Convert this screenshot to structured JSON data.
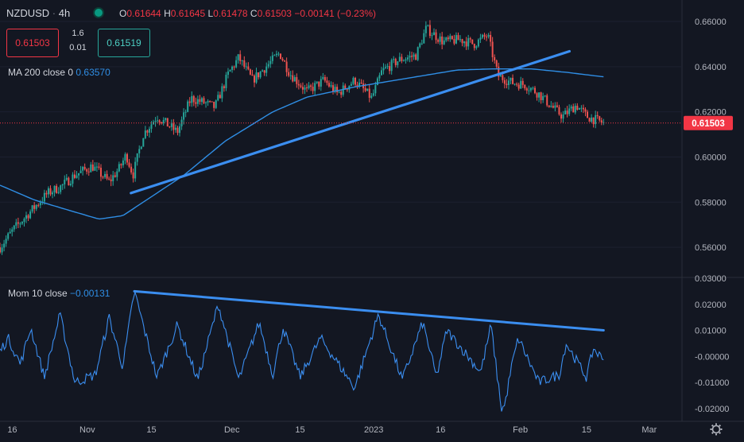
{
  "header": {
    "symbol": "NZDUSD",
    "interval": "4h",
    "open_label": "O",
    "open": "0.61644",
    "high_label": "H",
    "high": "0.61645",
    "low_label": "L",
    "low": "0.61478",
    "close_label": "C",
    "close": "0.61503",
    "change": "−0.00141 (−0.23%)"
  },
  "quote": {
    "bid": "0.61503",
    "ask": "0.61519",
    "spread_top": "1.6",
    "spread_bottom": "0.01"
  },
  "ma_legend": {
    "label": "MA 200 close 0",
    "value": "0.63570"
  },
  "mom_legend": {
    "label": "Mom 10 close",
    "value": "−0.00131"
  },
  "last_price_label": "0.61503",
  "colors": {
    "background": "#131722",
    "up": "#26a69a",
    "down": "#ef5350",
    "ma": "#2f8ee5",
    "trendline": "#3b8ef0",
    "momentum": "#3b8ef0",
    "price_tag": "#f23645"
  },
  "icons": {
    "settings": "gear-icon"
  },
  "chart_data": [
    {
      "type": "candlestick",
      "pane": "price",
      "x_tick_labels": [
        "16",
        "Nov",
        "15",
        "Dec",
        "15",
        "2023",
        "16",
        "Feb",
        "15",
        "Mar"
      ],
      "y_tick_labels": [
        "0.66000",
        "0.64000",
        "0.62000",
        "0.60000",
        "0.58000",
        "0.56000"
      ],
      "ylim": [
        0.547,
        0.666
      ],
      "last_price": 0.61503,
      "price_anchors": [
        [
          0,
          0.56
        ],
        [
          0.02,
          0.568
        ],
        [
          0.045,
          0.576
        ],
        [
          0.07,
          0.584
        ],
        [
          0.09,
          0.587
        ],
        [
          0.11,
          0.592
        ],
        [
          0.135,
          0.596
        ],
        [
          0.16,
          0.589
        ],
        [
          0.175,
          0.595
        ],
        [
          0.185,
          0.601
        ],
        [
          0.195,
          0.592
        ],
        [
          0.21,
          0.61
        ],
        [
          0.23,
          0.618
        ],
        [
          0.26,
          0.611
        ],
        [
          0.28,
          0.626
        ],
        [
          0.3,
          0.624
        ],
        [
          0.315,
          0.622
        ],
        [
          0.335,
          0.637
        ],
        [
          0.35,
          0.644
        ],
        [
          0.37,
          0.634
        ],
        [
          0.39,
          0.64
        ],
        [
          0.41,
          0.646
        ],
        [
          0.425,
          0.637
        ],
        [
          0.45,
          0.629
        ],
        [
          0.475,
          0.634
        ],
        [
          0.495,
          0.628
        ],
        [
          0.52,
          0.634
        ],
        [
          0.545,
          0.626
        ],
        [
          0.56,
          0.638
        ],
        [
          0.585,
          0.643
        ],
        [
          0.61,
          0.645
        ],
        [
          0.625,
          0.657
        ],
        [
          0.65,
          0.651
        ],
        [
          0.675,
          0.652
        ],
        [
          0.695,
          0.65
        ],
        [
          0.715,
          0.654
        ],
        [
          0.73,
          0.636
        ],
        [
          0.75,
          0.633
        ],
        [
          0.77,
          0.632
        ],
        [
          0.79,
          0.628
        ],
        [
          0.81,
          0.622
        ],
        [
          0.825,
          0.618
        ],
        [
          0.845,
          0.623
        ],
        [
          0.86,
          0.618
        ],
        [
          0.885,
          0.615
        ]
      ],
      "ma200_anchors": [
        [
          0,
          0.5875
        ],
        [
          0.05,
          0.581
        ],
        [
          0.1,
          0.5765
        ],
        [
          0.145,
          0.5725
        ],
        [
          0.18,
          0.574
        ],
        [
          0.215,
          0.581
        ],
        [
          0.27,
          0.592
        ],
        [
          0.33,
          0.607
        ],
        [
          0.4,
          0.62
        ],
        [
          0.45,
          0.6265
        ],
        [
          0.52,
          0.631
        ],
        [
          0.6,
          0.635
        ],
        [
          0.67,
          0.6385
        ],
        [
          0.72,
          0.639
        ],
        [
          0.78,
          0.639
        ],
        [
          0.83,
          0.6375
        ],
        [
          0.885,
          0.6355
        ]
      ],
      "trendline": {
        "start": [
          0.192,
          0.584
        ],
        "end": [
          0.835,
          0.6468
        ]
      }
    },
    {
      "type": "line",
      "pane": "momentum",
      "series": [
        {
          "name": "Mom 10 close"
        }
      ],
      "y_tick_labels": [
        "0.03000",
        "0.02000",
        "0.01000",
        "-0.00000",
        "-0.01000",
        "-0.02000"
      ],
      "ylim": [
        -0.024,
        0.03
      ],
      "last_value": -0.00131,
      "peaks": [
        [
          0.012,
          0.007
        ],
        [
          0.045,
          0.011
        ],
        [
          0.088,
          0.016
        ],
        [
          0.16,
          0.015
        ],
        [
          0.197,
          0.025
        ],
        [
          0.26,
          0.012
        ],
        [
          0.32,
          0.02
        ],
        [
          0.38,
          0.013
        ],
        [
          0.415,
          0.011
        ],
        [
          0.47,
          0.007
        ],
        [
          0.555,
          0.016
        ],
        [
          0.62,
          0.013
        ],
        [
          0.655,
          0.01
        ],
        [
          0.72,
          0.012
        ],
        [
          0.75,
          -0.004
        ],
        [
          0.76,
          0.007
        ],
        [
          0.83,
          0.005
        ],
        [
          0.87,
          0.003
        ]
      ],
      "troughs": [
        [
          0.03,
          -0.003
        ],
        [
          0.065,
          -0.008
        ],
        [
          0.11,
          -0.01
        ],
        [
          0.14,
          -0.007
        ],
        [
          0.18,
          -0.004
        ],
        [
          0.23,
          -0.008
        ],
        [
          0.29,
          -0.009
        ],
        [
          0.35,
          -0.009
        ],
        [
          0.4,
          -0.007
        ],
        [
          0.44,
          -0.008
        ],
        [
          0.52,
          -0.012
        ],
        [
          0.59,
          -0.009
        ],
        [
          0.64,
          -0.008
        ],
        [
          0.705,
          -0.006
        ],
        [
          0.735,
          -0.02
        ],
        [
          0.74,
          -0.019
        ],
        [
          0.79,
          -0.01
        ],
        [
          0.82,
          -0.007
        ],
        [
          0.86,
          -0.008
        ]
      ],
      "trendline": {
        "start": [
          0.197,
          0.025
        ],
        "end": [
          0.885,
          0.01
        ]
      }
    }
  ]
}
